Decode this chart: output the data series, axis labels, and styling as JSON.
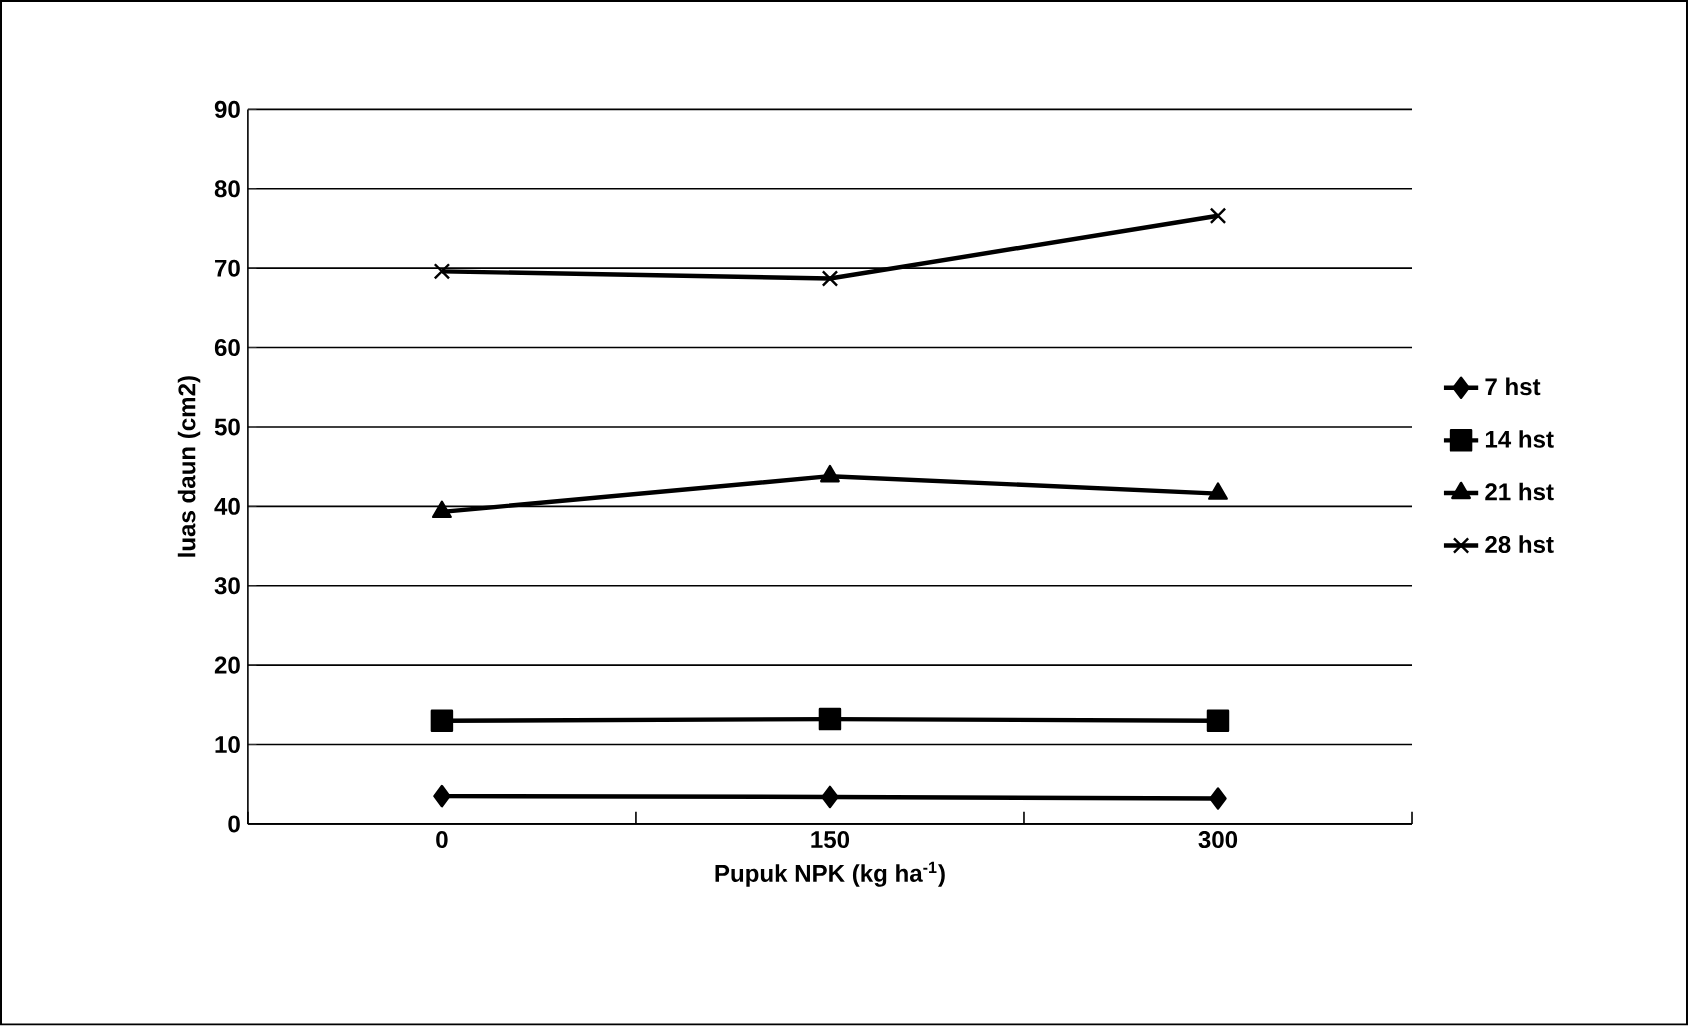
{
  "chart_data": {
    "type": "line",
    "xlabel": "Pupuk NPK (kg ha$^{-1}$)",
    "ylabel": "luas daun (cm2)",
    "categories": [
      "0",
      "150",
      "300"
    ],
    "series": [
      {
        "name": "7 hst",
        "color": "#000000",
        "marker": "diamond",
        "values": [
          3.5,
          3.4,
          3.2
        ]
      },
      {
        "name": "14 hst",
        "color": "#000000",
        "marker": "square",
        "values": [
          13,
          13.2,
          13
        ]
      },
      {
        "name": "21 hst",
        "color": "#000000",
        "marker": "triangle",
        "values": [
          39.3,
          43.8,
          41.6
        ]
      },
      {
        "name": "28 hst",
        "color": "#000000",
        "marker": "cross",
        "values": [
          69.6,
          68.7,
          76.6
        ]
      }
    ],
    "ylim": [
      0,
      90
    ],
    "yticks": [
      0,
      10,
      20,
      30,
      40,
      50,
      60,
      70,
      80,
      90
    ],
    "grid": "y",
    "legend": "right",
    "line_style": "solid"
  }
}
